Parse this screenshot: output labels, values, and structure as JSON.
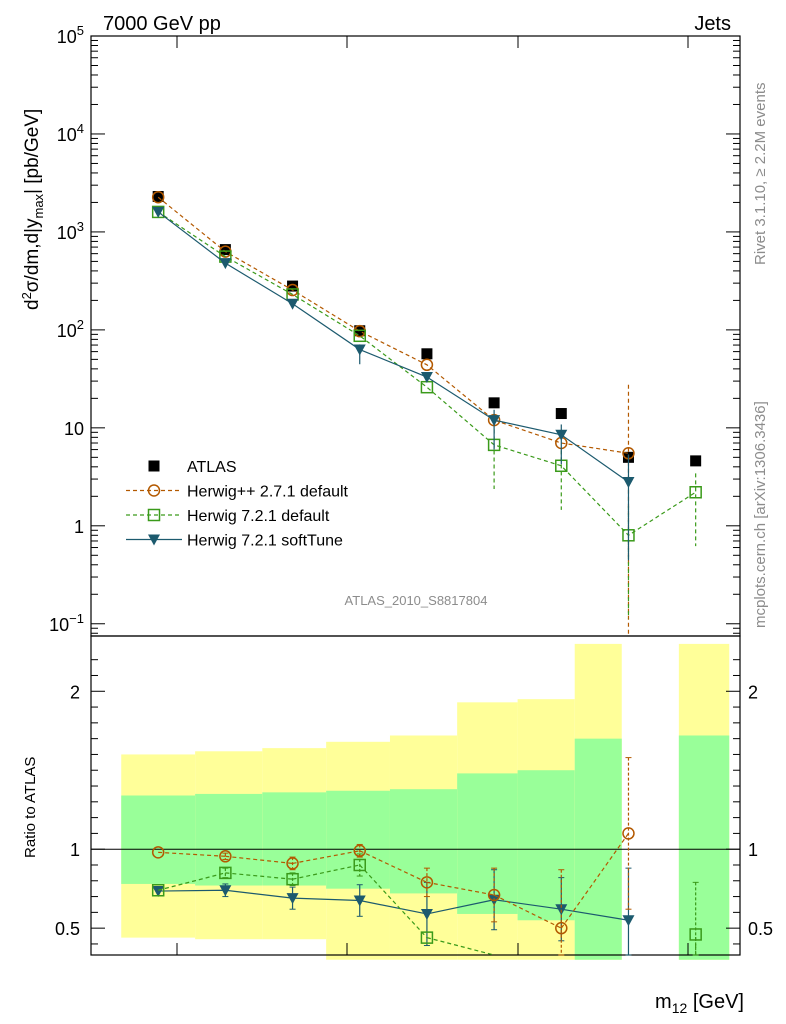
{
  "header": {
    "left": "7000 GeV pp",
    "right": "Jets"
  },
  "side_labels": {
    "rivet": "Rivet 3.1.10, ≥ 2.2M events",
    "mcplots": "mcplots.cern.ch [arXiv:1306.3436]"
  },
  "analysis_label": "ATLAS_2010_S8817804",
  "axis_labels": {
    "y_main_prefix": "d",
    "y_main_sup": "2",
    "y_main_mid": "σ/dm,d|y",
    "y_main_sub": "max",
    "y_main_suffix": "| [pb/GeV]",
    "y_ratio": "Ratio to ATLAS",
    "x_prefix": "m",
    "x_sub": "12",
    "x_suffix": " [GeV]"
  },
  "main_ticks": {
    "labels": [
      {
        "value": 100000,
        "base": "10",
        "exp": "5"
      },
      {
        "value": 10000,
        "base": "10",
        "exp": "4"
      },
      {
        "value": 1000,
        "base": "10",
        "exp": "3"
      },
      {
        "value": 100,
        "base": "10",
        "exp": "2"
      },
      {
        "value": 10,
        "base": "10",
        "exp": ""
      },
      {
        "value": 1,
        "base": "1",
        "exp": ""
      },
      {
        "value": 0.1,
        "base": "10",
        "exp": "−1"
      }
    ]
  },
  "ratio_ticks": {
    "labels": [
      {
        "value": 2,
        "text": "2"
      },
      {
        "value": 1,
        "text": "1"
      },
      {
        "value": 0.5,
        "text": "0.5"
      }
    ]
  },
  "legend": [
    {
      "label": "ATLAS",
      "series": "atlas"
    },
    {
      "label": "Herwig++ 2.7.1 default",
      "series": "hpp"
    },
    {
      "label": "Herwig 7.2.1 default",
      "series": "h7def"
    },
    {
      "label": "Herwig 7.2.1 softTune",
      "series": "h7soft"
    }
  ],
  "colors": {
    "atlas": "#000000",
    "hpp": "#b35900",
    "h7def": "#3a9a1a",
    "h7soft": "#1c5a6e",
    "band_inner": "#99ff99",
    "band_outer": "#ffff99"
  },
  "chart_data": {
    "type": "scatter",
    "xlabel": "m12 [GeV]",
    "ylabel": "d2σ/dm,d|ymax| [pb/GeV]",
    "y_scale": "log",
    "ylim": [
      0.075,
      100000
    ],
    "ratio_ylim": [
      0.33,
      2.35
    ],
    "x_positions": [
      1,
      2,
      3,
      4,
      5,
      6,
      7,
      8,
      9
    ],
    "series": [
      {
        "name": "ATLAS",
        "key": "atlas",
        "values": [
          2300,
          660,
          280,
          98,
          57,
          18,
          14,
          5,
          4.6
        ]
      },
      {
        "name": "Herwig++ 2.7.1 default",
        "key": "hpp",
        "values": [
          2260,
          630,
          255,
          97,
          44,
          12,
          7,
          5.5,
          null
        ],
        "errors": [
          0,
          0,
          0,
          0,
          0,
          0,
          0,
          2,
          0
        ]
      },
      {
        "name": "Herwig 7.2.1 default",
        "key": "h7def",
        "values": [
          1600,
          560,
          230,
          87,
          26,
          6.7,
          4.1,
          0.8,
          2.2
        ],
        "errors": [
          0,
          0,
          0,
          0,
          0,
          0.45,
          0.45,
          0.85,
          0.55
        ]
      },
      {
        "name": "Herwig 7.2.1 softTune",
        "key": "h7soft",
        "values": [
          1600,
          480,
          185,
          63,
          33,
          12,
          8.5,
          2.8,
          null
        ],
        "errors": [
          0,
          0,
          0,
          0.15,
          0,
          0.3,
          0.3,
          0.8,
          0
        ]
      }
    ],
    "ratio": {
      "hpp": {
        "values": [
          0.98,
          0.955,
          0.91,
          0.99,
          0.79,
          0.71,
          0.5,
          1.1,
          null
        ],
        "errors": [
          0,
          0.02,
          0.04,
          0.04,
          0.09,
          0.17,
          0.37,
          0.48,
          0
        ]
      },
      "h7def": {
        "values": [
          0.74,
          0.85,
          0.81,
          0.9,
          0.44,
          0.28,
          null,
          null,
          0.46
        ],
        "errors": [
          0,
          0.03,
          0.04,
          0.07,
          0.0,
          0.0,
          0,
          0,
          0.33
        ]
      },
      "h7soft": {
        "values": [
          0.735,
          0.74,
          0.69,
          0.675,
          0.59,
          0.68,
          0.62,
          0.55,
          null
        ],
        "errors": [
          0,
          0.04,
          0.07,
          0.1,
          0.2,
          0.19,
          0.2,
          0.33,
          0
        ]
      },
      "bands": [
        {
          "x0": 0.45,
          "x1": 1.55,
          "inner": [
            0.78,
            1.34
          ],
          "outer": [
            0.44,
            1.6
          ]
        },
        {
          "x0": 1.55,
          "x1": 2.55,
          "inner": [
            0.77,
            1.35
          ],
          "outer": [
            0.43,
            1.62
          ]
        },
        {
          "x0": 2.55,
          "x1": 3.5,
          "inner": [
            0.77,
            1.36
          ],
          "outer": [
            0.43,
            1.64
          ]
        },
        {
          "x0": 3.5,
          "x1": 4.45,
          "inner": [
            0.75,
            1.37
          ],
          "outer": [
            0.3,
            1.68
          ]
        },
        {
          "x0": 4.45,
          "x1": 5.45,
          "inner": [
            0.72,
            1.38
          ],
          "outer": [
            0.3,
            1.72
          ]
        },
        {
          "x0": 5.45,
          "x1": 6.35,
          "inner": [
            0.59,
            1.48
          ],
          "outer": [
            0.3,
            1.93
          ]
        },
        {
          "x0": 6.35,
          "x1": 7.2,
          "inner": [
            0.55,
            1.5
          ],
          "outer": [
            0.3,
            1.95
          ]
        },
        {
          "x0": 7.2,
          "x1": 7.9,
          "inner": [
            0.3,
            1.7
          ],
          "outer": [
            0.3,
            2.3
          ]
        },
        {
          "x0": 8.75,
          "x1": 9.5,
          "inner": [
            0.3,
            1.72
          ],
          "outer": [
            0.3,
            2.3
          ]
        }
      ]
    }
  }
}
